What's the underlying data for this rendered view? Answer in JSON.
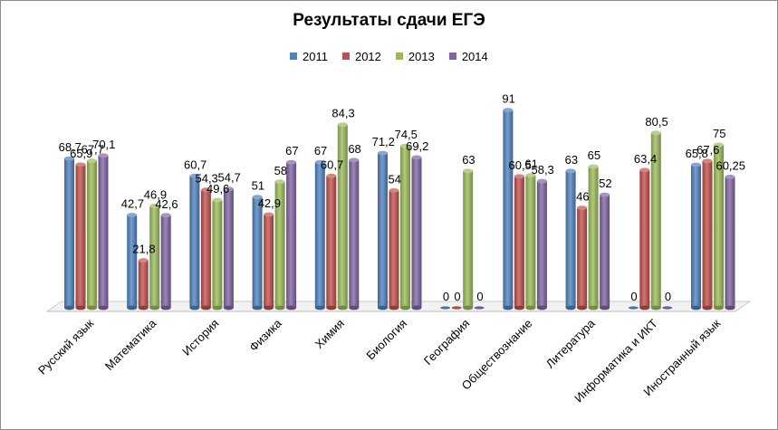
{
  "chart_data": {
    "type": "bar",
    "title": "Результаты сдачи ЕГЭ",
    "categories": [
      "Русский язык",
      "Математика",
      "История",
      "Физика",
      "Химия",
      "Биология",
      "География",
      "Обществознание",
      "Литература",
      "Информатика и ИКТ",
      "Иностранный язык"
    ],
    "series": [
      {
        "name": "2011",
        "color": "#4f81bd",
        "values": [
          68.7,
          42.7,
          60.7,
          51,
          67,
          71.2,
          0,
          91,
          63,
          0,
          65.8
        ],
        "labels": [
          "68,7",
          "42,7",
          "60,7",
          "51",
          "67",
          "71,2",
          "0",
          "91",
          "63",
          "0",
          "65,8"
        ]
      },
      {
        "name": "2012",
        "color": "#c0504d",
        "values": [
          65.9,
          21.8,
          54.3,
          42.9,
          60.7,
          54,
          0,
          60.5,
          46,
          63.4,
          67.6
        ],
        "labels": [
          "65,9",
          "21,8",
          "54,3",
          "42,9",
          "60,7",
          "54",
          "0",
          "60,5",
          "46",
          "63,4",
          "67,6"
        ]
      },
      {
        "name": "2013",
        "color": "#9bbb59",
        "values": [
          67.7,
          46.9,
          49.6,
          58,
          84.3,
          74.5,
          63,
          61,
          65,
          80.5,
          75
        ],
        "labels": [
          "67,7",
          "46,9",
          "49,6",
          "58",
          "84,3",
          "74,5",
          "63",
          "61",
          "65",
          "80,5",
          "75"
        ]
      },
      {
        "name": "2014",
        "color": "#8064a2",
        "values": [
          70.1,
          42.6,
          54.7,
          67,
          68,
          69.2,
          0,
          58.3,
          52,
          0,
          60.25
        ],
        "labels": [
          "70,1",
          "42,6",
          "54,7",
          "67",
          "68",
          "69,2",
          "0",
          "58,3",
          "52",
          "0",
          "60,25"
        ]
      }
    ],
    "ylim": [
      0,
      100
    ],
    "grid": false,
    "legend_position": "top"
  }
}
